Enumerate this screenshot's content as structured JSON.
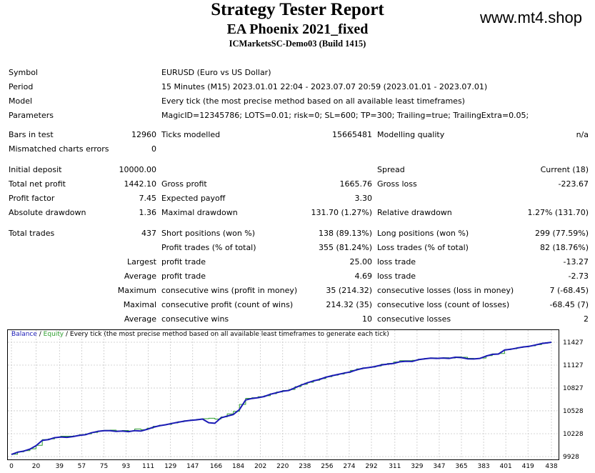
{
  "header": {
    "title": "Strategy Tester Report",
    "subtitle": "EA Phoenix 2021_fixed",
    "server": "ICMarketsSC-Demo03 (Build 1415)",
    "watermark": "www.mt4.shop"
  },
  "info": {
    "symbol_label": "Symbol",
    "symbol_value": "EURUSD (Euro vs US Dollar)",
    "period_label": "Period",
    "period_value": "15 Minutes (M15) 2023.01.01 22:04 - 2023.07.07 20:59 (2023.01.01 - 2023.07.01)",
    "model_label": "Model",
    "model_value": "Every tick (the most precise method based on all available least timeframes)",
    "params_label": "Parameters",
    "params_value": "MagicID=12345786; LOTS=0.01; risk=0; SL=600; TP=300; Trailing=true; TrailingExtra=0.05;"
  },
  "bars": {
    "bars_label": "Bars in test",
    "bars_value": "12960",
    "ticks_label": "Ticks modelled",
    "ticks_value": "15665481",
    "quality_label": "Modelling quality",
    "quality_value": "n/a",
    "mismatch_label": "Mismatched charts errors",
    "mismatch_value": "0"
  },
  "results": {
    "deposit_label": "Initial deposit",
    "deposit_value": "10000.00",
    "spread_label": "Spread",
    "spread_value": "Current (18)",
    "netprofit_label": "Total net profit",
    "netprofit_value": "1442.10",
    "grossprofit_label": "Gross profit",
    "grossprofit_value": "1665.76",
    "grossloss_label": "Gross loss",
    "grossloss_value": "-223.67",
    "pf_label": "Profit factor",
    "pf_value": "7.45",
    "payoff_label": "Expected payoff",
    "payoff_value": "3.30",
    "absdd_label": "Absolute drawdown",
    "absdd_value": "1.36",
    "maxdd_label": "Maximal drawdown",
    "maxdd_value": "131.70 (1.27%)",
    "reldd_label": "Relative drawdown",
    "reldd_value": "1.27% (131.70)"
  },
  "trades": {
    "total_label": "Total trades",
    "total_value": "437",
    "short_label": "Short positions (won %)",
    "short_value": "138 (89.13%)",
    "long_label": "Long positions (won %)",
    "long_value": "299 (77.59%)",
    "profit_label": "Profit trades (% of total)",
    "profit_value": "355 (81.24%)",
    "loss_label": "Loss trades (% of total)",
    "loss_value": "82 (18.76%)",
    "largest_label": "Largest",
    "largest_profit_label": "profit trade",
    "largest_profit_value": "25.00",
    "largest_loss_label": "loss trade",
    "largest_loss_value": "-13.27",
    "average_label": "Average",
    "average_profit_label": "profit trade",
    "average_profit_value": "4.69",
    "average_loss_label": "loss trade",
    "average_loss_value": "-2.73",
    "maximum_label": "Maximum",
    "max_wins_label": "consecutive wins (profit in money)",
    "max_wins_value": "35 (214.32)",
    "max_losses_label": "consecutive losses (loss in money)",
    "max_losses_value": "7 (-68.45)",
    "maximal_label": "Maximal",
    "maximal_profit_label": "consecutive profit (count of wins)",
    "maximal_profit_value": "214.32 (35)",
    "maximal_loss_label": "consecutive loss (count of losses)",
    "maximal_loss_value": "-68.45 (7)",
    "avg_label": "Average",
    "avg_wins_label": "consecutive wins",
    "avg_wins_value": "10",
    "avg_losses_label": "consecutive losses",
    "avg_losses_value": "2"
  },
  "chart_header": {
    "balance": "Balance",
    "sep1": " / ",
    "equity": "Equity",
    "rest": " / Every tick (the most precise method based on all available least timeframes to generate each tick)"
  },
  "colors": {
    "balance": "#1a1ab5",
    "equity": "#2e9e2e",
    "grid": "#c8c8c8"
  },
  "chart_data": {
    "type": "line",
    "x_ticks": [
      "0",
      "20",
      "39",
      "57",
      "75",
      "93",
      "111",
      "129",
      "147",
      "166",
      "184",
      "202",
      "220",
      "238",
      "256",
      "274",
      "292",
      "311",
      "329",
      "347",
      "365",
      "383",
      "401",
      "419",
      "438"
    ],
    "y_ticks": [
      "11427",
      "11127",
      "10827",
      "10528",
      "10228",
      "9928"
    ],
    "xlim": [
      0,
      438
    ],
    "ylim": [
      9928,
      11427
    ],
    "series": [
      {
        "name": "Balance",
        "x": [
          0,
          5,
          10,
          15,
          20,
          25,
          30,
          35,
          40,
          45,
          50,
          55,
          60,
          65,
          70,
          75,
          80,
          85,
          90,
          95,
          100,
          105,
          110,
          115,
          120,
          125,
          130,
          135,
          140,
          145,
          150,
          155,
          160,
          165,
          170,
          175,
          180,
          185,
          190,
          195,
          200,
          205,
          210,
          215,
          220,
          225,
          230,
          235,
          240,
          245,
          250,
          255,
          260,
          265,
          270,
          275,
          280,
          285,
          290,
          295,
          300,
          305,
          310,
          315,
          320,
          325,
          330,
          335,
          340,
          345,
          350,
          355,
          360,
          365,
          370,
          375,
          380,
          385,
          390,
          395,
          400,
          405,
          410,
          415,
          420,
          425,
          430,
          435,
          438
        ],
        "y": [
          9955,
          9985,
          10000,
          10025,
          10070,
          10140,
          10150,
          10175,
          10185,
          10180,
          10190,
          10205,
          10215,
          10240,
          10258,
          10268,
          10268,
          10258,
          10262,
          10255,
          10268,
          10262,
          10285,
          10312,
          10332,
          10345,
          10362,
          10378,
          10392,
          10402,
          10410,
          10420,
          10372,
          10365,
          10436,
          10458,
          10480,
          10545,
          10670,
          10690,
          10700,
          10715,
          10745,
          10765,
          10785,
          10795,
          10830,
          10865,
          10895,
          10920,
          10940,
          10968,
          10988,
          11005,
          11022,
          11038,
          11065,
          11085,
          11095,
          11108,
          11128,
          11140,
          11150,
          11170,
          11178,
          11175,
          11198,
          11210,
          11218,
          11215,
          11220,
          11215,
          11230,
          11226,
          11210,
          11208,
          11215,
          11245,
          11268,
          11272,
          11325,
          11335,
          11350,
          11365,
          11374,
          11390,
          11410,
          11420,
          11427
        ]
      },
      {
        "name": "Equity",
        "x": [
          0,
          5,
          10,
          15,
          20,
          25,
          30,
          35,
          40,
          45,
          50,
          55,
          60,
          65,
          70,
          75,
          80,
          85,
          90,
          95,
          100,
          105,
          110,
          115,
          120,
          125,
          130,
          135,
          140,
          145,
          150,
          155,
          160,
          165,
          170,
          175,
          180,
          185,
          190,
          195,
          200,
          205,
          210,
          215,
          220,
          225,
          230,
          235,
          240,
          245,
          250,
          255,
          260,
          265,
          270,
          275,
          280,
          285,
          290,
          295,
          300,
          305,
          310,
          315,
          320,
          325,
          330,
          335,
          340,
          345,
          350,
          355,
          360,
          365,
          370,
          375,
          380,
          385,
          390,
          395,
          400,
          405,
          410,
          415,
          420,
          425,
          430,
          435,
          438
        ],
        "y": [
          9958,
          9990,
          10005,
          10030,
          10075,
          10150,
          10160,
          10180,
          10195,
          10195,
          10200,
          10215,
          10225,
          10245,
          10262,
          10272,
          10275,
          10265,
          10270,
          10262,
          10290,
          10280,
          10300,
          10325,
          10340,
          10350,
          10368,
          10385,
          10398,
          10408,
          10416,
          10425,
          10430,
          10420,
          10448,
          10488,
          10520,
          10612,
          10692,
          10700,
          10712,
          10725,
          10752,
          10775,
          10795,
          10808,
          10845,
          10875,
          10902,
          10928,
          10950,
          10975,
          10995,
          11010,
          11030,
          11058,
          11078,
          11092,
          11100,
          11115,
          11138,
          11150,
          11168,
          11185,
          11185,
          11190,
          11205,
          11215,
          11222,
          11218,
          11225,
          11220,
          11235,
          11230,
          11216,
          11212,
          11220,
          11252,
          11275,
          11280,
          11330,
          11342,
          11358,
          11370,
          11380,
          11395,
          11414,
          11424,
          11428
        ]
      }
    ]
  }
}
